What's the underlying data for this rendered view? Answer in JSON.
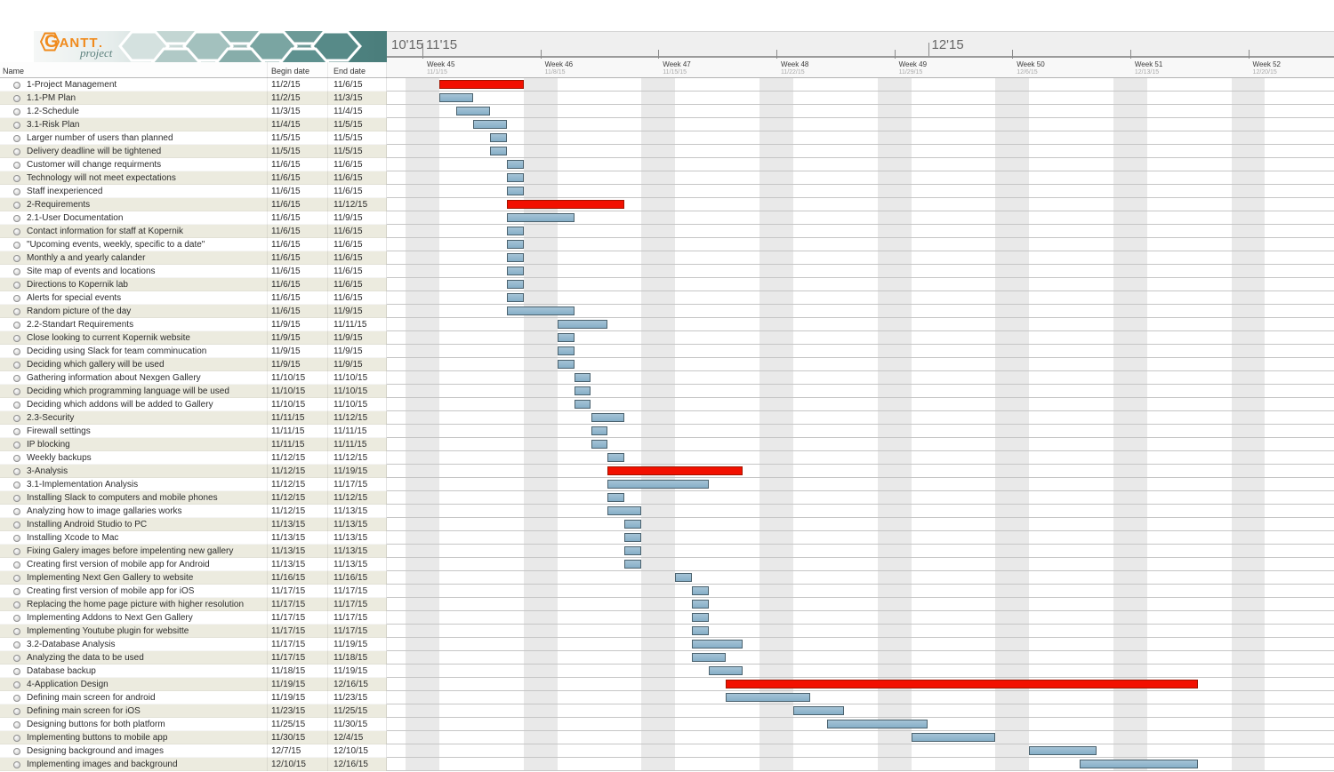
{
  "logo": {
    "title": "GANTT",
    "subtitle": "project"
  },
  "table": {
    "columns": {
      "name": "Name",
      "begin": "Begin date",
      "end": "End date"
    },
    "tasks": [
      {
        "name": "1-Project Management",
        "begin": "11/2/15",
        "end": "11/6/15",
        "critical": true
      },
      {
        "name": "1.1-PM Plan",
        "begin": "11/2/15",
        "end": "11/3/15",
        "critical": false
      },
      {
        "name": "1.2-Schedule",
        "begin": "11/3/15",
        "end": "11/4/15",
        "critical": false
      },
      {
        "name": "3.1-Risk Plan",
        "begin": "11/4/15",
        "end": "11/5/15",
        "critical": false
      },
      {
        "name": "Larger number of users than planned",
        "begin": "11/5/15",
        "end": "11/5/15",
        "critical": false
      },
      {
        "name": "Delivery deadline will be tightened",
        "begin": "11/5/15",
        "end": "11/5/15",
        "critical": false
      },
      {
        "name": "Customer will change requirments",
        "begin": "11/6/15",
        "end": "11/6/15",
        "critical": false
      },
      {
        "name": "Technology will not meet expectations",
        "begin": "11/6/15",
        "end": "11/6/15",
        "critical": false
      },
      {
        "name": "Staff inexperienced",
        "begin": "11/6/15",
        "end": "11/6/15",
        "critical": false
      },
      {
        "name": "2-Requirements",
        "begin": "11/6/15",
        "end": "11/12/15",
        "critical": true
      },
      {
        "name": "2.1-User Documentation",
        "begin": "11/6/15",
        "end": "11/9/15",
        "critical": false
      },
      {
        "name": "Contact information for staff at Kopernik",
        "begin": "11/6/15",
        "end": "11/6/15",
        "critical": false
      },
      {
        "name": "\"Upcoming events, weekly, specific to a date\"",
        "begin": "11/6/15",
        "end": "11/6/15",
        "critical": false
      },
      {
        "name": "Monthly a and yearly calander",
        "begin": "11/6/15",
        "end": "11/6/15",
        "critical": false
      },
      {
        "name": "Site map of events and locations",
        "begin": "11/6/15",
        "end": "11/6/15",
        "critical": false
      },
      {
        "name": "Directions to Kopernik lab",
        "begin": "11/6/15",
        "end": "11/6/15",
        "critical": false
      },
      {
        "name": "Alerts for special events",
        "begin": "11/6/15",
        "end": "11/6/15",
        "critical": false
      },
      {
        "name": "Random picture of the day",
        "begin": "11/6/15",
        "end": "11/9/15",
        "critical": false
      },
      {
        "name": "2.2-Standart Requirements",
        "begin": "11/9/15",
        "end": "11/11/15",
        "critical": false
      },
      {
        "name": "Close looking to current Kopernik website",
        "begin": "11/9/15",
        "end": "11/9/15",
        "critical": false
      },
      {
        "name": "Deciding using Slack for team comminucation",
        "begin": "11/9/15",
        "end": "11/9/15",
        "critical": false
      },
      {
        "name": "Deciding which gallery will be used",
        "begin": "11/9/15",
        "end": "11/9/15",
        "critical": false
      },
      {
        "name": "Gathering information about Nexgen Gallery",
        "begin": "11/10/15",
        "end": "11/10/15",
        "critical": false
      },
      {
        "name": "Deciding which programming language will be used",
        "begin": "11/10/15",
        "end": "11/10/15",
        "critical": false
      },
      {
        "name": "Deciding which addons will be added to Gallery",
        "begin": "11/10/15",
        "end": "11/10/15",
        "critical": false
      },
      {
        "name": "2.3-Security",
        "begin": "11/11/15",
        "end": "11/12/15",
        "critical": false
      },
      {
        "name": "Firewall settings",
        "begin": "11/11/15",
        "end": "11/11/15",
        "critical": false
      },
      {
        "name": "IP blocking",
        "begin": "11/11/15",
        "end": "11/11/15",
        "critical": false
      },
      {
        "name": "Weekly backups",
        "begin": "11/12/15",
        "end": "11/12/15",
        "critical": false
      },
      {
        "name": "3-Analysis",
        "begin": "11/12/15",
        "end": "11/19/15",
        "critical": true
      },
      {
        "name": "3.1-Implementation Analysis",
        "begin": "11/12/15",
        "end": "11/17/15",
        "critical": false
      },
      {
        "name": "Installing Slack to computers and mobile phones",
        "begin": "11/12/15",
        "end": "11/12/15",
        "critical": false
      },
      {
        "name": "Analyzing how to image gallaries works",
        "begin": "11/12/15",
        "end": "11/13/15",
        "critical": false
      },
      {
        "name": "Installing Android Studio to  PC",
        "begin": "11/13/15",
        "end": "11/13/15",
        "critical": false
      },
      {
        "name": "Installing Xcode to Mac",
        "begin": "11/13/15",
        "end": "11/13/15",
        "critical": false
      },
      {
        "name": "Fixing Galery images before impelenting new gallery",
        "begin": "11/13/15",
        "end": "11/13/15",
        "critical": false
      },
      {
        "name": "Creating first version of mobile app for Android",
        "begin": "11/13/15",
        "end": "11/13/15",
        "critical": false
      },
      {
        "name": "Implementing Next Gen Gallery to website",
        "begin": "11/16/15",
        "end": "11/16/15",
        "critical": false
      },
      {
        "name": "Creating first version of mobile app for iOS",
        "begin": "11/17/15",
        "end": "11/17/15",
        "critical": false
      },
      {
        "name": "Replacing the home page picture with higher resolution",
        "begin": "11/17/15",
        "end": "11/17/15",
        "critical": false
      },
      {
        "name": "Implementing Addons to Next Gen Gallery",
        "begin": "11/17/15",
        "end": "11/17/15",
        "critical": false
      },
      {
        "name": "Implementing Youtube plugin for websitte",
        "begin": "11/17/15",
        "end": "11/17/15",
        "critical": false
      },
      {
        "name": "3.2-Database Analysis",
        "begin": "11/17/15",
        "end": "11/19/15",
        "critical": false
      },
      {
        "name": "Analyzing the data  to be used",
        "begin": "11/17/15",
        "end": "11/18/15",
        "critical": false
      },
      {
        "name": "Database backup",
        "begin": "11/18/15",
        "end": "11/19/15",
        "critical": false
      },
      {
        "name": "4-Application Design",
        "begin": "11/19/15",
        "end": "12/16/15",
        "critical": true
      },
      {
        "name": "Defining main screen for android",
        "begin": "11/19/15",
        "end": "11/23/15",
        "critical": false
      },
      {
        "name": "Defining main screen for iOS",
        "begin": "11/23/15",
        "end": "11/25/15",
        "critical": false
      },
      {
        "name": "Designing buttons for both platform",
        "begin": "11/25/15",
        "end": "11/30/15",
        "critical": false
      },
      {
        "name": "Implementing buttons to mobile app",
        "begin": "11/30/15",
        "end": "12/4/15",
        "critical": false
      },
      {
        "name": "Designing background and images",
        "begin": "12/7/15",
        "end": "12/10/15",
        "critical": false
      },
      {
        "name": "Implementing images and background",
        "begin": "12/10/15",
        "end": "12/16/15",
        "critical": false
      }
    ]
  },
  "timeline": {
    "months": [
      {
        "label": "10'15",
        "date": "10/1/15"
      },
      {
        "label": "11'15",
        "date": "11/1/15"
      },
      {
        "label": "12'15",
        "date": "12/1/15"
      }
    ],
    "weeks": [
      {
        "label": "Week 45",
        "date": "11/1/15"
      },
      {
        "label": "Week 46",
        "date": "11/8/15"
      },
      {
        "label": "Week 47",
        "date": "11/15/15"
      },
      {
        "label": "Week 48",
        "date": "11/22/15"
      },
      {
        "label": "Week 49",
        "date": "11/29/15"
      },
      {
        "label": "Week 50",
        "date": "12/6/15"
      },
      {
        "label": "Week 51",
        "date": "12/13/15"
      },
      {
        "label": "Week 52",
        "date": "12/20/15"
      }
    ]
  },
  "colors": {
    "task_fill": "#86afc8",
    "task_fill_light": "#a5c3d6",
    "task_border": "#4b626e",
    "critical_fill": "#f21000",
    "critical_border": "#a01400",
    "weekend_stripe": "#e9e9e9",
    "banner_teal": "#4e8280",
    "logo_orange": "#f08a1c"
  }
}
